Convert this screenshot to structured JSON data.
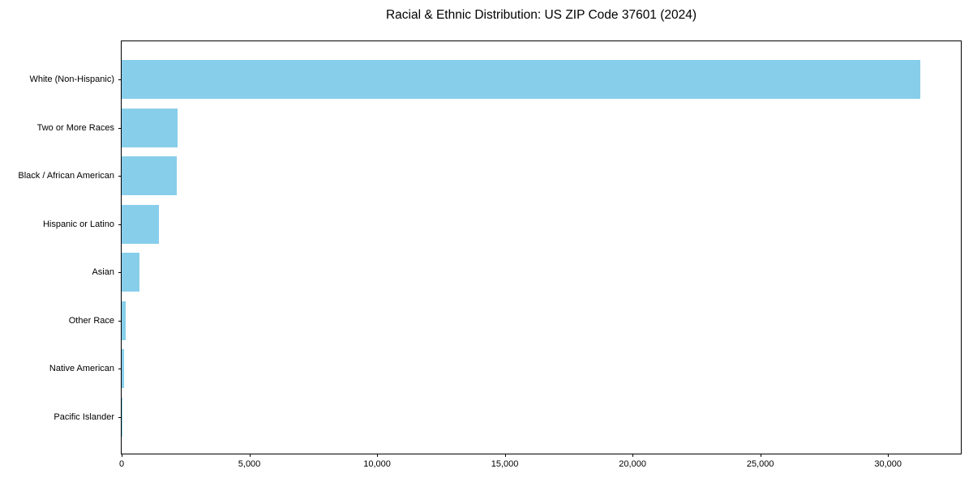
{
  "colors": {
    "bar": "#87CEEB",
    "axis": "#000000",
    "text": "#000000",
    "background": "#ffffff"
  },
  "chart_data": {
    "type": "bar",
    "orientation": "horizontal",
    "title": "Racial & Ethnic Distribution: US ZIP Code 37601 (2024)",
    "xlabel": "",
    "ylabel": "",
    "categories": [
      "White (Non-Hispanic)",
      "Two or More Races",
      "Black / African American",
      "Hispanic or Latino",
      "Asian",
      "Other Race",
      "Native American",
      "Pacific Islander"
    ],
    "values": [
      31260,
      2190,
      2150,
      1460,
      700,
      145,
      80,
      15
    ],
    "xlim": [
      0,
      32850
    ],
    "x_ticks": [
      0,
      5000,
      10000,
      15000,
      20000,
      25000,
      30000
    ],
    "x_tick_labels": [
      "0",
      "5,000",
      "10,000",
      "15,000",
      "20,000",
      "25,000",
      "30,000"
    ],
    "grid": false,
    "legend": null,
    "bar_color": "#87CEEB"
  }
}
